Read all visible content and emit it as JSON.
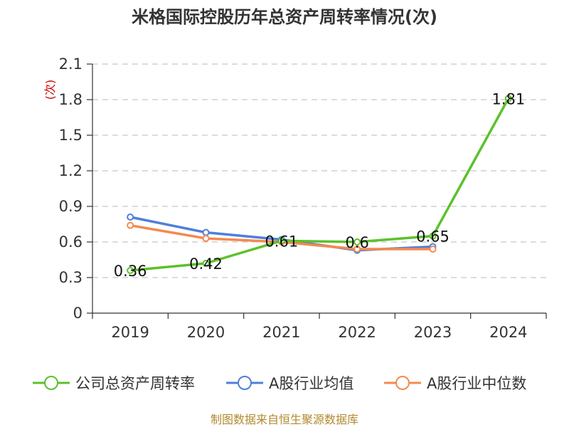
{
  "chart_data": {
    "type": "line",
    "title": "米格国际控股历年总资产周转率情况(次)",
    "ylabel": "(次)",
    "xlabel": "",
    "categories": [
      "2019",
      "2020",
      "2021",
      "2022",
      "2023",
      "2024"
    ],
    "ylim": [
      0,
      2.1
    ],
    "yticks": [
      "0",
      "0.3",
      "0.6",
      "0.9",
      "1.2",
      "1.5",
      "1.8",
      "2.1"
    ],
    "grid": true,
    "legend_position": "bottom",
    "series": [
      {
        "name": "公司总资产周转率",
        "color": "#5cc12a",
        "values": [
          0.36,
          0.42,
          0.61,
          0.6,
          0.65,
          1.81
        ],
        "labels": [
          "0.36",
          "0.42",
          "0.61",
          "0.6",
          "0.65",
          "1.81"
        ]
      },
      {
        "name": "A股行业均值",
        "color": "#4e7fdb",
        "values": [
          0.81,
          0.68,
          0.62,
          0.53,
          0.56,
          null
        ]
      },
      {
        "name": "A股行业中位数",
        "color": "#f5894f",
        "values": [
          0.74,
          0.63,
          0.6,
          0.54,
          0.54,
          null
        ]
      }
    ]
  },
  "footer": {
    "source": "制图数据来自恒生聚源数据库"
  }
}
